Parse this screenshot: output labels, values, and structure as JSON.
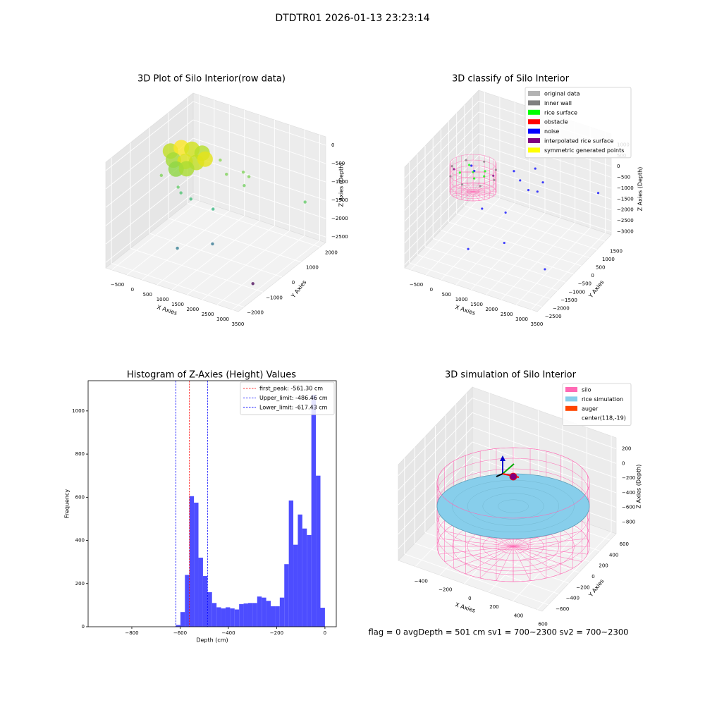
{
  "title": "DTDTR01 2026-01-13 23:23:14",
  "footer": "flag = 0     avgDepth = 501 cm  sv1 = 700~2300  sv2 = 700~2300",
  "chart_data": [
    {
      "type": "scatter3d",
      "title": "3D Plot of Silo Interior(row data)",
      "xlabel": "X Axies",
      "ylabel": "Y Axies",
      "zlabel": "Z Axies (Depth)",
      "xlim": [
        -700,
        3700
      ],
      "ylim": [
        -2300,
        2300
      ],
      "zlim": [
        -2650,
        230
      ],
      "xticks": [
        {
          "value": -500,
          "label": "−500"
        },
        0,
        500,
        1000,
        1500,
        2000,
        2500,
        3000,
        3500
      ],
      "yticks": [
        {
          "value": -2000,
          "label": "−2000"
        },
        {
          "value": -1000,
          "label": "−1000"
        },
        0,
        1000,
        2000
      ],
      "zticks": [
        0,
        {
          "value": -500,
          "label": "−500"
        },
        {
          "value": -1000,
          "label": "−1000"
        },
        {
          "value": -1500,
          "label": "−1500"
        },
        {
          "value": -2000,
          "label": "−2000"
        },
        {
          "value": -2500,
          "label": "−2500"
        }
      ],
      "series": [
        {
          "x": [
            -36,
            118,
            413,
            770,
            299,
            616,
            910,
            629,
            866,
            1016,
            -18,
            396,
            470,
            721,
            1377,
            1073,
            1474,
            1870,
            2063,
            2072,
            3484,
            884,
            1742,
            3212
          ],
          "y": [
            53,
            378,
            469,
            442,
            -327,
            -214,
            -83,
            -708,
            -531,
            207,
            -456,
            -230,
            -198,
            -74,
            55,
            915,
            607,
            863,
            607,
            841,
            1555,
            -1041,
            -552,
            -759
          ],
          "z": [
            -250,
            -250,
            -250,
            -250,
            -250,
            -250,
            -250,
            -250,
            -250,
            -250,
            -700,
            -1000,
            -1150,
            -1300,
            -1450,
            -550,
            -700,
            -640,
            -850,
            -700,
            -1300,
            -2200,
            -2050,
            -2650
          ],
          "colors": [
            "#c2df23",
            "#fde725",
            "#d2e21b",
            "#b5de2b",
            "#a5db36",
            "#dde318",
            "#c2df23",
            "#8fd744",
            "#aadc32",
            "#e5e419",
            "#7ad151",
            "#5ec962",
            "#4ac16d",
            "#3bbb75",
            "#2fb47c",
            "#86d549",
            "#7ad151",
            "#7ad151",
            "#6ccd5a",
            "#7ad151",
            "#5ec962",
            "#2a788e",
            "#2c728e",
            "#440154"
          ]
        }
      ]
    },
    {
      "type": "scatter3d",
      "title": "3D classify of Silo Interior",
      "xlabel": "X Axies",
      "ylabel": "Y Axies",
      "zlabel": "Z Axies (Depth)",
      "xlim": [
        -700,
        3700
      ],
      "ylim": [
        -2800,
        1900
      ],
      "zlim": [
        -3150,
        1500
      ],
      "xticks": [
        {
          "value": -500,
          "label": "−500"
        },
        0,
        500,
        1000,
        1500,
        2000,
        2500,
        3000,
        3500
      ],
      "yticks": [
        {
          "value": -2500,
          "label": "−2500"
        },
        {
          "value": -2000,
          "label": "−2000"
        },
        {
          "value": -1500,
          "label": "−1500"
        },
        {
          "value": -1000,
          "label": "−1000"
        },
        {
          "value": -500,
          "label": "−500"
        },
        0,
        500,
        1000,
        1500
      ],
      "zticks": [
        1000,
        500,
        0,
        {
          "value": -500,
          "label": "−500"
        },
        {
          "value": -1000,
          "label": "−1000"
        },
        {
          "value": -1500,
          "label": "−1500"
        },
        {
          "value": -2000,
          "label": "−2000"
        },
        {
          "value": -2500,
          "label": "−2500"
        },
        {
          "value": -3000,
          "label": "−3000"
        }
      ],
      "legend": "upper right",
      "series": [
        {
          "name": "original data",
          "color": "#b3b3b3",
          "x": [],
          "y": [],
          "z": []
        },
        {
          "name": "inner wall",
          "color": "#808080",
          "x": [
            818,
            613,
            118,
            -377,
            -582,
            -377,
            118,
            613
          ],
          "y": [
            -19,
            476,
            681,
            476,
            -19,
            -514,
            -719,
            -514
          ],
          "z": [
            -500,
            -500,
            -500,
            -500,
            -500,
            -500,
            -500,
            -500
          ]
        },
        {
          "name": "rice surface",
          "color": "#00ff00",
          "x": [
            118,
            400,
            -150,
            300,
            -200,
            500
          ],
          "y": [
            -19,
            200,
            250,
            -300,
            -250,
            -50
          ],
          "z": [
            -450,
            -450,
            -450,
            -450,
            -450,
            -450
          ]
        },
        {
          "name": "obstacle",
          "color": "#ff0000",
          "x": [],
          "y": [],
          "z": []
        },
        {
          "name": "noise",
          "color": "#0000ff",
          "x": [
            563,
            1324,
            2987,
            438,
            1126,
            1408,
            1672,
            1711,
            1089,
            836,
            1311,
            3489,
            0,
            200
          ],
          "y": [
            -1183,
            -347,
            -948,
            -62,
            114,
            1026,
            1092,
            1364,
            1108,
            1200,
            1646,
            1477,
            100,
            -100
          ],
          "z": [
            -2920,
            -2920,
            -2920,
            -1960,
            -1960,
            -1480,
            -1480,
            -1240,
            -1240,
            -1000,
            -1000,
            -1000,
            -300,
            -300
          ]
        },
        {
          "name": "interpolated rice surface",
          "color": "#800080",
          "x": [
            700,
            -450
          ],
          "y": [
            150,
            -150
          ],
          "z": [
            -480,
            -480
          ]
        },
        {
          "name": "symmetric generated points",
          "color": "#ffff00",
          "x": [],
          "y": [],
          "z": []
        }
      ]
    },
    {
      "type": "histogram",
      "title": "Histogram of Z-Axies (Height) Values",
      "xlabel": "Depth (cm)",
      "ylabel": "Frequency",
      "color": "#4d4dff",
      "xlim": [
        -981,
        47
      ],
      "ylim": [
        0,
        1140
      ],
      "xticks": [
        {
          "value": -800,
          "label": "−800"
        },
        {
          "value": -600,
          "label": "−600"
        },
        {
          "value": -400,
          "label": "−400"
        },
        {
          "value": -200,
          "label": "−200"
        },
        0
      ],
      "yticks": [
        0,
        200,
        400,
        600,
        800,
        1000
      ],
      "bins": [
        -617.4,
        -598.7,
        -580.0,
        -561.3,
        -542.6,
        -523.9,
        -505.2,
        -486.5,
        -467.8,
        -449.0,
        -430.3,
        -411.6,
        -392.9,
        -374.2,
        -355.5,
        -336.8,
        -318.1,
        -299.4,
        -280.7,
        -262.0,
        -243.3,
        -224.6,
        -205.8,
        -187.1,
        -168.4,
        -149.7,
        -131.0,
        -112.3,
        -93.6,
        -74.9,
        -56.2,
        -37.5,
        -18.7,
        0
      ],
      "values": [
        8,
        68,
        240,
        605,
        575,
        320,
        235,
        160,
        110,
        90,
        85,
        90,
        85,
        80,
        105,
        108,
        110,
        110,
        140,
        135,
        120,
        95,
        95,
        135,
        290,
        585,
        380,
        520,
        455,
        425,
        1075,
        700,
        88
      ],
      "legend": "upper right",
      "vlines": [
        {
          "label": "first_peak: -561.30 cm",
          "value": -561.3,
          "color": "#ff0000"
        },
        {
          "label": "Upper_limit: -486.46 cm",
          "value": -486.46,
          "color": "#0000ff"
        },
        {
          "label": "Lower_limit: -617.43 cm",
          "value": -617.43,
          "color": "#0000ff"
        }
      ]
    },
    {
      "type": "silo3d",
      "title": "3D simulation of Silo Interior",
      "xlabel": "X Axies",
      "ylabel": "Y Axies",
      "zlabel": "Z Axies (Depth)",
      "xlim": [
        -540,
        640
      ],
      "ylim": [
        -720,
        720
      ],
      "zlim": [
        -960,
        350
      ],
      "xticks": [
        {
          "value": -400,
          "label": "−400"
        },
        {
          "value": -200,
          "label": "−200"
        },
        0,
        200,
        400,
        600
      ],
      "yticks": [
        {
          "value": -600,
          "label": "−600"
        },
        {
          "value": -400,
          "label": "−400"
        },
        {
          "value": -200,
          "label": "−200"
        },
        0,
        200,
        400,
        600
      ],
      "zticks": [
        200,
        0,
        {
          "value": -200,
          "label": "−200"
        },
        {
          "value": -400,
          "label": "−400"
        },
        {
          "value": -600,
          "label": "−600"
        },
        {
          "value": -800,
          "label": "−800"
        }
      ],
      "legend": "upper right",
      "series": [
        {
          "name": "silo",
          "color": "#ff69b4"
        },
        {
          "name": "rice simulation",
          "color": "#87ceeb"
        },
        {
          "name": "auger",
          "color": "#ff4500"
        },
        {
          "name": "center(118,-19)"
        }
      ]
    }
  ]
}
